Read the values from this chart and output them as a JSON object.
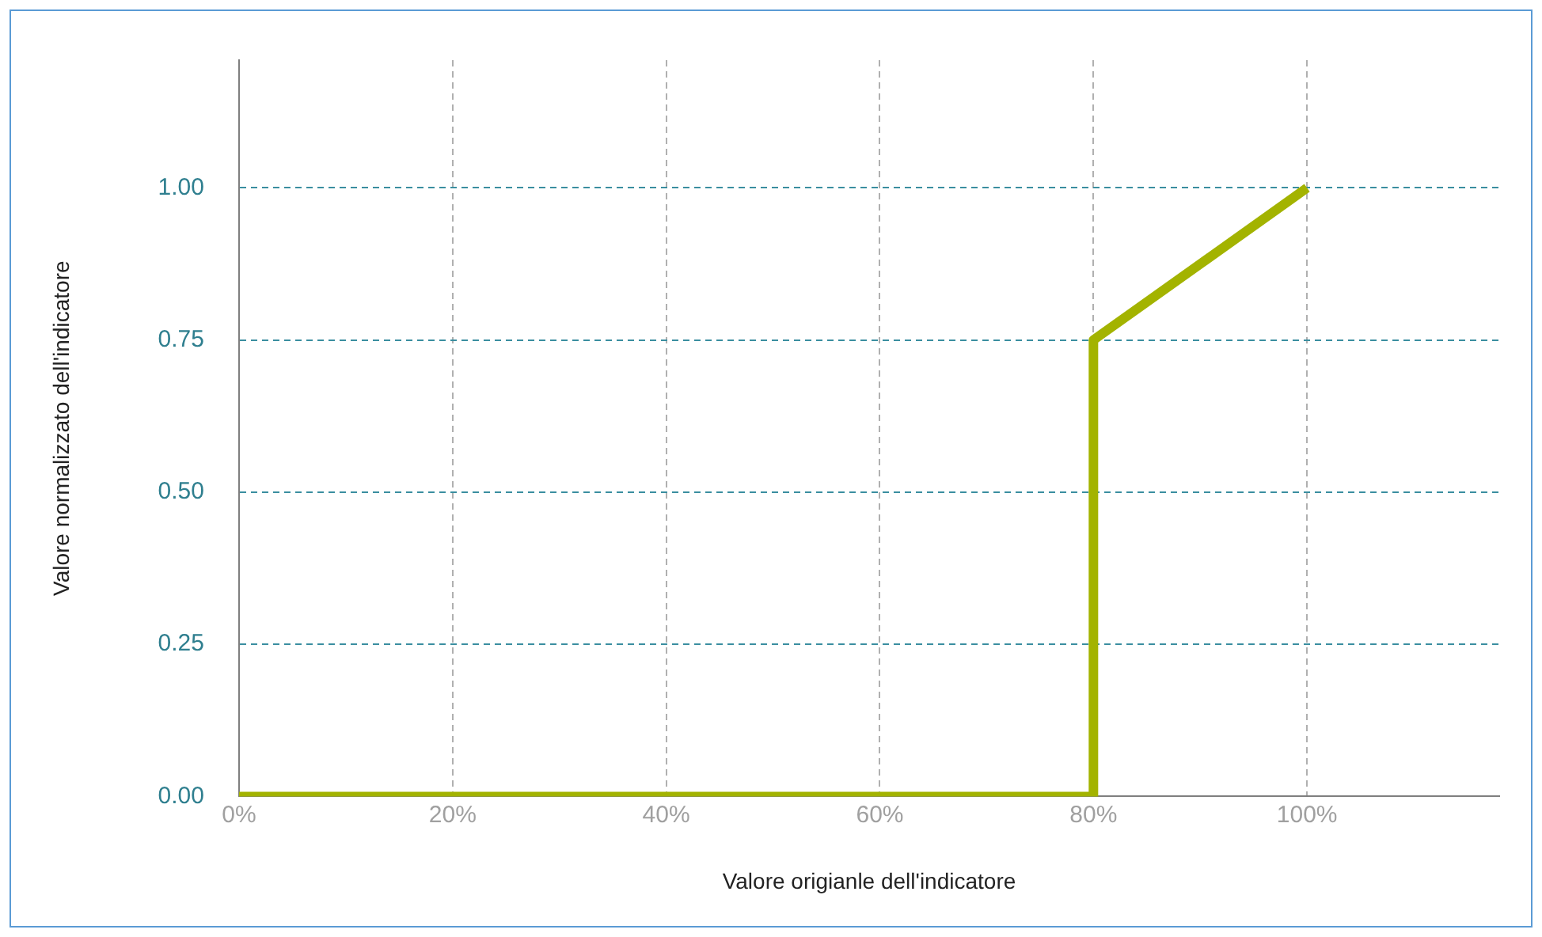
{
  "chart_data": {
    "type": "line",
    "xlabel": "Valore origianle dell'indicatore",
    "ylabel": "Valore normalizzato dell'indicatore",
    "x": [
      0,
      80,
      80,
      100
    ],
    "series": [
      {
        "color": "#a3b300",
        "values": [
          0,
          0,
          0.75,
          1
        ]
      }
    ],
    "xlim": [
      0,
      118
    ],
    "ylim": [
      0,
      1.21
    ],
    "xticks": [
      {
        "value": 0,
        "label": "0%"
      },
      {
        "value": 20,
        "label": "20%"
      },
      {
        "value": 40,
        "label": "40%"
      },
      {
        "value": 60,
        "label": "60%"
      },
      {
        "value": 80,
        "label": "80%"
      },
      {
        "value": 100,
        "label": "100%"
      }
    ],
    "yticks": [
      {
        "value": 0,
        "label": "0.00"
      },
      {
        "value": 0.25,
        "label": "0.25"
      },
      {
        "value": 0.5,
        "label": "0.50"
      },
      {
        "value": 0.75,
        "label": "0.75"
      },
      {
        "value": 1,
        "label": "1.00"
      }
    ],
    "grid": true,
    "legend": false,
    "marker": "none",
    "line_style": "solid"
  }
}
